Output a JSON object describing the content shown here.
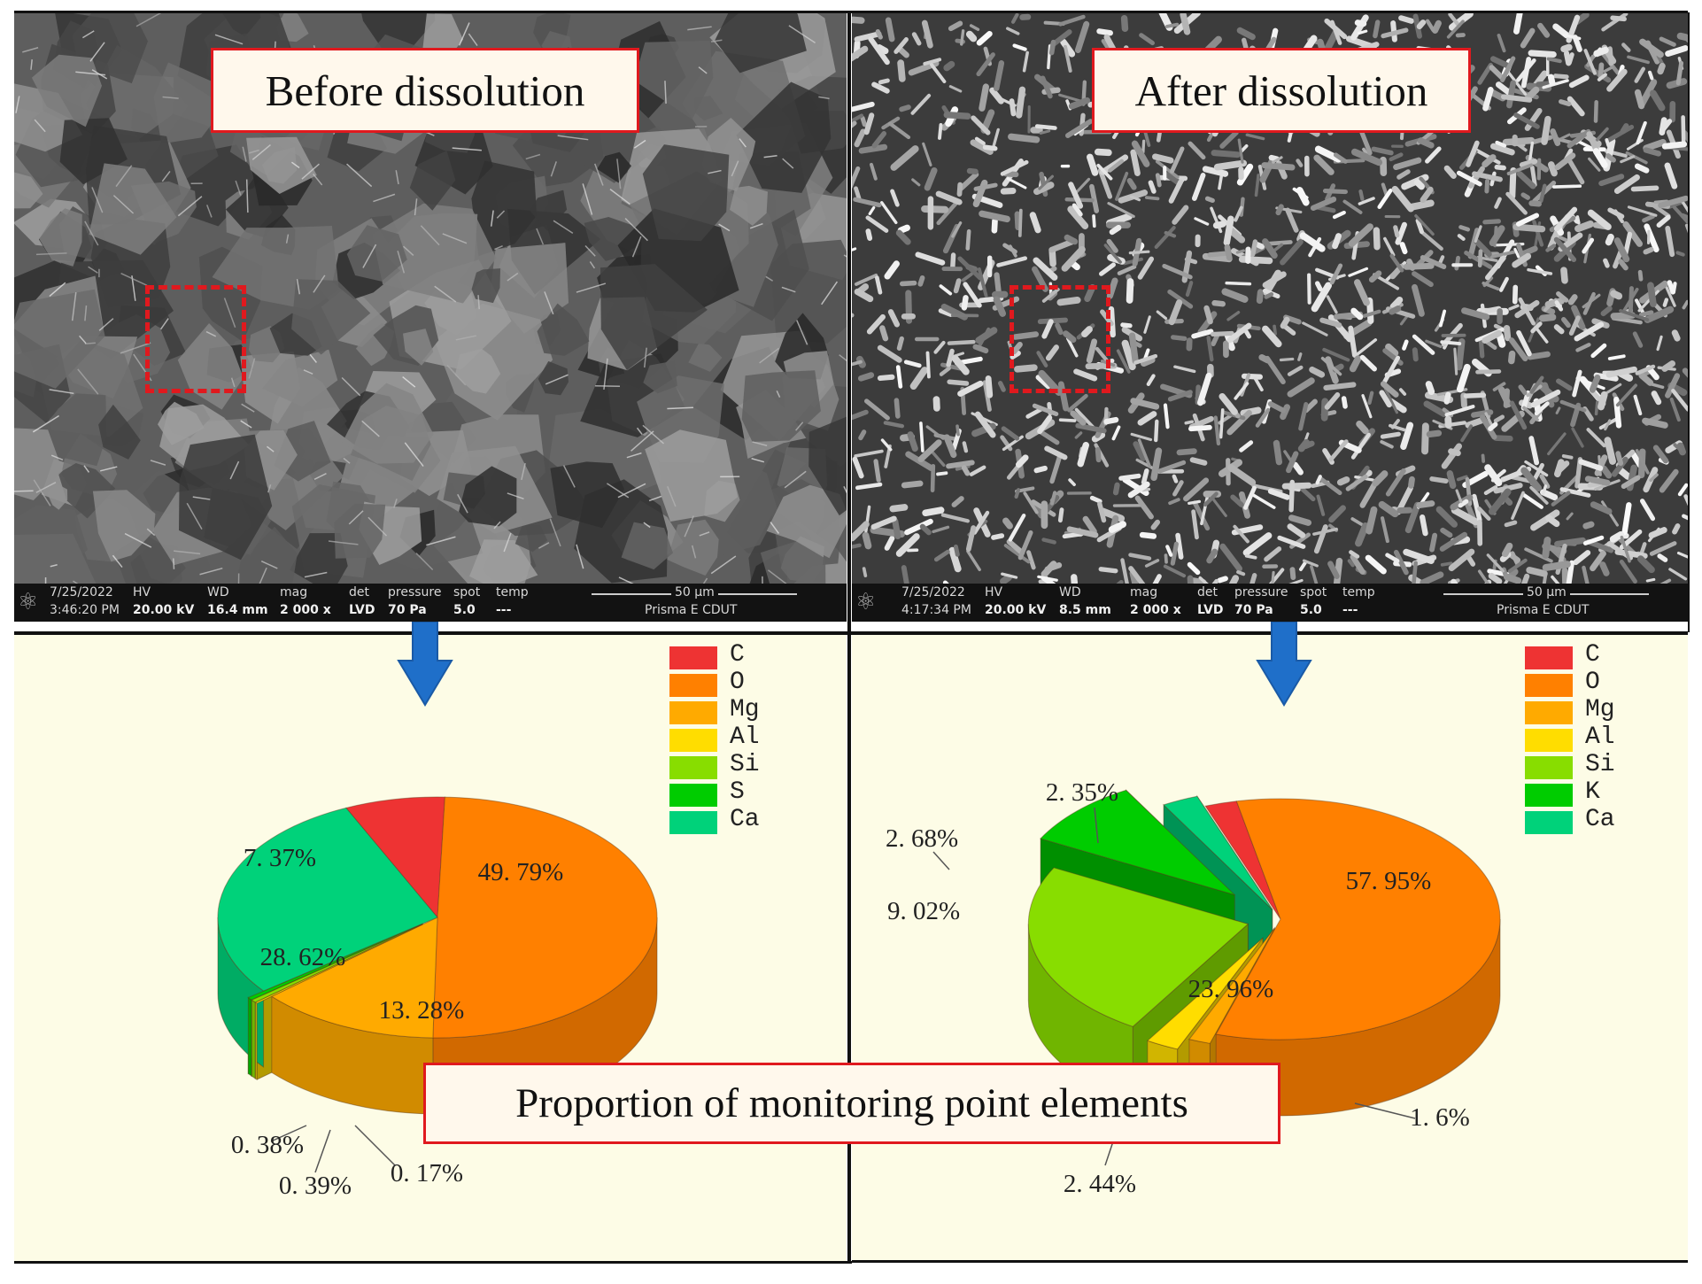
{
  "panels": {
    "before": {
      "title": "Before dissolution",
      "info": {
        "date": "7/25/2022",
        "time": "3:46:20 PM",
        "hv_label": "HV",
        "hv": "20.00 kV",
        "wd_label": "WD",
        "wd": "16.4 mm",
        "mag_label": "mag",
        "mag": "2 000 x",
        "det_label": "det",
        "det": "LVD",
        "pressure_label": "pressure",
        "pressure": "70 Pa",
        "spot_label": "spot",
        "spot": "5.0",
        "temp_label": "temp",
        "temp": "---",
        "scale": "50 µm",
        "instrument": "Prisma E CDUT"
      }
    },
    "after": {
      "title": "After dissolution",
      "info": {
        "date": "7/25/2022",
        "time": "4:17:34 PM",
        "hv_label": "HV",
        "hv": "20.00 kV",
        "wd_label": "WD",
        "wd": "8.5 mm",
        "mag_label": "mag",
        "mag": "2 000 x",
        "det_label": "det",
        "det": "LVD",
        "pressure_label": "pressure",
        "pressure": "70 Pa",
        "spot_label": "spot",
        "spot": "5.0",
        "temp_label": "temp",
        "temp": "---",
        "scale": "50 µm",
        "instrument": "Prisma E CDUT"
      }
    }
  },
  "caption": "Proportion of monitoring point elements",
  "colors": {
    "C": "#ee3333",
    "O": "#ff8000",
    "Mg": "#ffaa00",
    "Al": "#ffdd00",
    "Si": "#88dd00",
    "S": "#00cc00",
    "K": "#00cc00",
    "Ca": "#00d27a"
  },
  "chart_data": [
    {
      "type": "pie",
      "name": "Before dissolution",
      "legend": [
        "C",
        "O",
        "Mg",
        "Al",
        "Si",
        "S",
        "Ca"
      ],
      "slices": [
        {
          "element": "C",
          "value": 7.37,
          "label": "7. 37%"
        },
        {
          "element": "O",
          "value": 49.79,
          "label": "49. 79%"
        },
        {
          "element": "Mg",
          "value": 13.28,
          "label": "13. 28%"
        },
        {
          "element": "Al",
          "value": 0.17,
          "label": "0. 17%"
        },
        {
          "element": "Si",
          "value": 0.39,
          "label": "0. 39%"
        },
        {
          "element": "S",
          "value": 0.38,
          "label": "0. 38%"
        },
        {
          "element": "Ca",
          "value": 28.62,
          "label": "28. 62%"
        }
      ]
    },
    {
      "type": "pie",
      "name": "After dissolution",
      "legend": [
        "C",
        "O",
        "Mg",
        "Al",
        "Si",
        "K",
        "Ca"
      ],
      "slices": [
        {
          "element": "C",
          "value": 2.35,
          "label": "2. 35%"
        },
        {
          "element": "O",
          "value": 57.95,
          "label": "57. 95%"
        },
        {
          "element": "Mg",
          "value": 1.6,
          "label": "1. 6%"
        },
        {
          "element": "Al",
          "value": 2.44,
          "label": "2. 44%"
        },
        {
          "element": "Si",
          "value": 23.96,
          "label": "23. 96%"
        },
        {
          "element": "K",
          "value": 9.02,
          "label": "9. 02%"
        },
        {
          "element": "Ca",
          "value": 2.68,
          "label": "2. 68%"
        }
      ]
    }
  ]
}
